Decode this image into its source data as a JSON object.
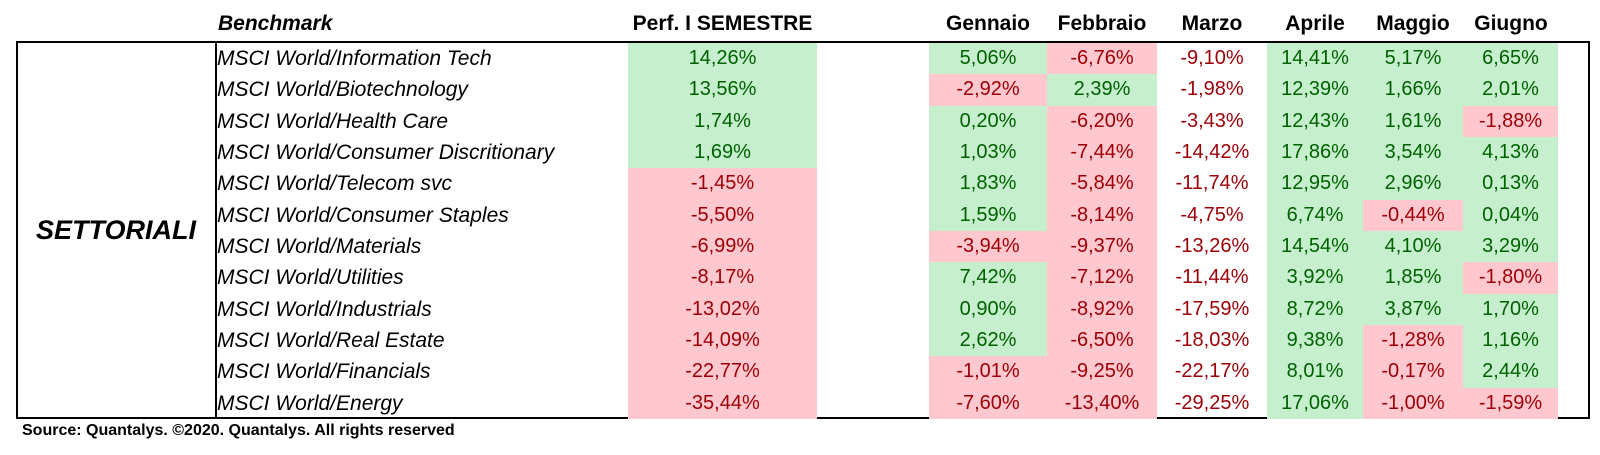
{
  "headers": {
    "benchmark": "Benchmark",
    "semester": "Perf. I SEMESTRE",
    "months": [
      "Gennaio",
      "Febbraio",
      "Marzo",
      "Aprile",
      "Maggio",
      "Giugno"
    ]
  },
  "group_label": "SETTORIALI",
  "colors": {
    "positive_fill": "#c6efce",
    "positive_text": "#006100",
    "negative_fill": "#ffc7ce",
    "negative_text": "#9c0006"
  },
  "rows": [
    {
      "name": "MSCI World/Information Tech",
      "semester": "14,26%",
      "months": [
        "5,06%",
        "-6,76%",
        "-9,10%",
        "14,41%",
        "5,17%",
        "6,65%"
      ]
    },
    {
      "name": "MSCI World/Biotechnology",
      "semester": "13,56%",
      "months": [
        "-2,92%",
        "2,39%",
        "-1,98%",
        "12,39%",
        "1,66%",
        "2,01%"
      ]
    },
    {
      "name": "MSCI World/Health Care",
      "semester": "1,74%",
      "months": [
        "0,20%",
        "-6,20%",
        "-3,43%",
        "12,43%",
        "1,61%",
        "-1,88%"
      ]
    },
    {
      "name": "MSCI World/Consumer Discritionary",
      "semester": "1,69%",
      "months": [
        "1,03%",
        "-7,44%",
        "-14,42%",
        "17,86%",
        "3,54%",
        "4,13%"
      ]
    },
    {
      "name": "MSCI World/Telecom svc",
      "semester": "-1,45%",
      "months": [
        "1,83%",
        "-5,84%",
        "-11,74%",
        "12,95%",
        "2,96%",
        "0,13%"
      ]
    },
    {
      "name": "MSCI World/Consumer Staples",
      "semester": "-5,50%",
      "months": [
        "1,59%",
        "-8,14%",
        "-4,75%",
        "6,74%",
        "-0,44%",
        "0,04%"
      ]
    },
    {
      "name": "MSCI World/Materials",
      "semester": "-6,99%",
      "months": [
        "-3,94%",
        "-9,37%",
        "-13,26%",
        "14,54%",
        "4,10%",
        "3,29%"
      ]
    },
    {
      "name": "MSCI World/Utilities",
      "semester": "-8,17%",
      "months": [
        "7,42%",
        "-7,12%",
        "-11,44%",
        "3,92%",
        "1,85%",
        "-1,80%"
      ]
    },
    {
      "name": "MSCI World/Industrials",
      "semester": "-13,02%",
      "months": [
        "0,90%",
        "-8,92%",
        "-17,59%",
        "8,72%",
        "3,87%",
        "1,70%"
      ]
    },
    {
      "name": "MSCI World/Real Estate",
      "semester": "-14,09%",
      "months": [
        "2,62%",
        "-6,50%",
        "-18,03%",
        "9,38%",
        "-1,28%",
        "1,16%"
      ]
    },
    {
      "name": "MSCI World/Financials",
      "semester": "-22,77%",
      "months": [
        "-1,01%",
        "-9,25%",
        "-22,17%",
        "8,01%",
        "-0,17%",
        "2,44%"
      ]
    },
    {
      "name": "MSCI World/Energy",
      "semester": "-35,44%",
      "months": [
        "-7,60%",
        "-13,40%",
        "-29,25%",
        "17,06%",
        "-1,00%",
        "-1,59%"
      ]
    }
  ],
  "source": "Source: Quantalys. ©2020. Quantalys. All rights reserved"
}
